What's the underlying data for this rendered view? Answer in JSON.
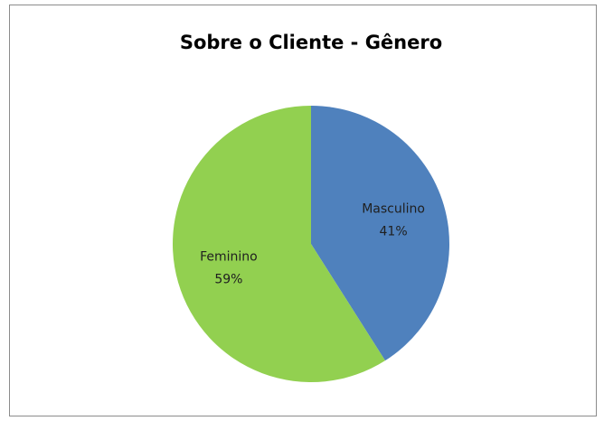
{
  "chart_data": {
    "type": "pie",
    "title": "Sobre o Cliente - Gênero",
    "categories": [
      "Masculino",
      "Feminino"
    ],
    "values": [
      41,
      59
    ],
    "value_labels": [
      "41%",
      "59%"
    ],
    "colors": [
      "#4f81bd",
      "#92d050"
    ]
  }
}
